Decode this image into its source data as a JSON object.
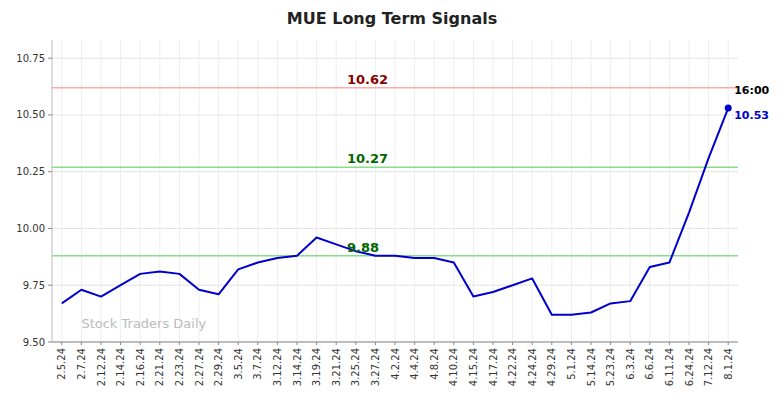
{
  "chart_data": {
    "type": "line",
    "title": "MUE Long Term Signals",
    "color": "#0000cc",
    "grid": true,
    "categories": [
      "2.5.24",
      "2.7.24",
      "2.12.24",
      "2.14.24",
      "2.16.24",
      "2.21.24",
      "2.23.24",
      "2.27.24",
      "2.29.24",
      "3.5.24",
      "3.7.24",
      "3.12.24",
      "3.14.24",
      "3.19.24",
      "3.21.24",
      "3.25.24",
      "3.27.24",
      "4.2.24",
      "4.4.24",
      "4.8.24",
      "4.10.24",
      "4.15.24",
      "4.17.24",
      "4.22.24",
      "4.24.24",
      "4.29.24",
      "5.1.24",
      "5.14.24",
      "5.23.24",
      "6.3.24",
      "6.6.24",
      "6.11.24",
      "6.24.24",
      "7.12.24",
      "8.1.24"
    ],
    "values": [
      9.67,
      9.73,
      9.7,
      9.75,
      9.8,
      9.81,
      9.8,
      9.73,
      9.71,
      9.82,
      9.85,
      9.87,
      9.88,
      9.96,
      9.93,
      9.9,
      9.88,
      9.88,
      9.87,
      9.87,
      9.85,
      9.7,
      9.72,
      9.75,
      9.78,
      9.62,
      9.62,
      9.63,
      9.67,
      9.68,
      9.83,
      9.85,
      10.07,
      10.31,
      10.53
    ],
    "ylim": [
      9.5,
      10.83
    ],
    "yticks": [
      {
        "value": 9.5,
        "label": "9.50"
      },
      {
        "value": 9.75,
        "label": "9.75"
      },
      {
        "value": 10.0,
        "label": "10.00"
      },
      {
        "value": 10.25,
        "label": "10.25"
      },
      {
        "value": 10.5,
        "label": "10.50"
      },
      {
        "value": 10.75,
        "label": "10.75"
      }
    ],
    "reference_lines": [
      {
        "value": 10.62,
        "label": "10.62",
        "color": "#ffaaaa",
        "label_color": "#880000"
      },
      {
        "value": 10.27,
        "label": "10.27",
        "color": "#88dd88",
        "label_color": "#006600"
      },
      {
        "value": 9.88,
        "label": "9.88",
        "color": "#88dd88",
        "label_color": "#006600"
      }
    ],
    "annotations": [
      {
        "text": "16:00",
        "x": "8.1.24",
        "y": 10.53,
        "color": "#000000"
      },
      {
        "text": "10.53",
        "x": "8.1.24",
        "y": 10.53,
        "color": "#0000cc"
      },
      {
        "text": "Stock Traders Daily",
        "x": "2.7.24",
        "y": 9.56,
        "color": "#bbbbbb"
      }
    ]
  }
}
